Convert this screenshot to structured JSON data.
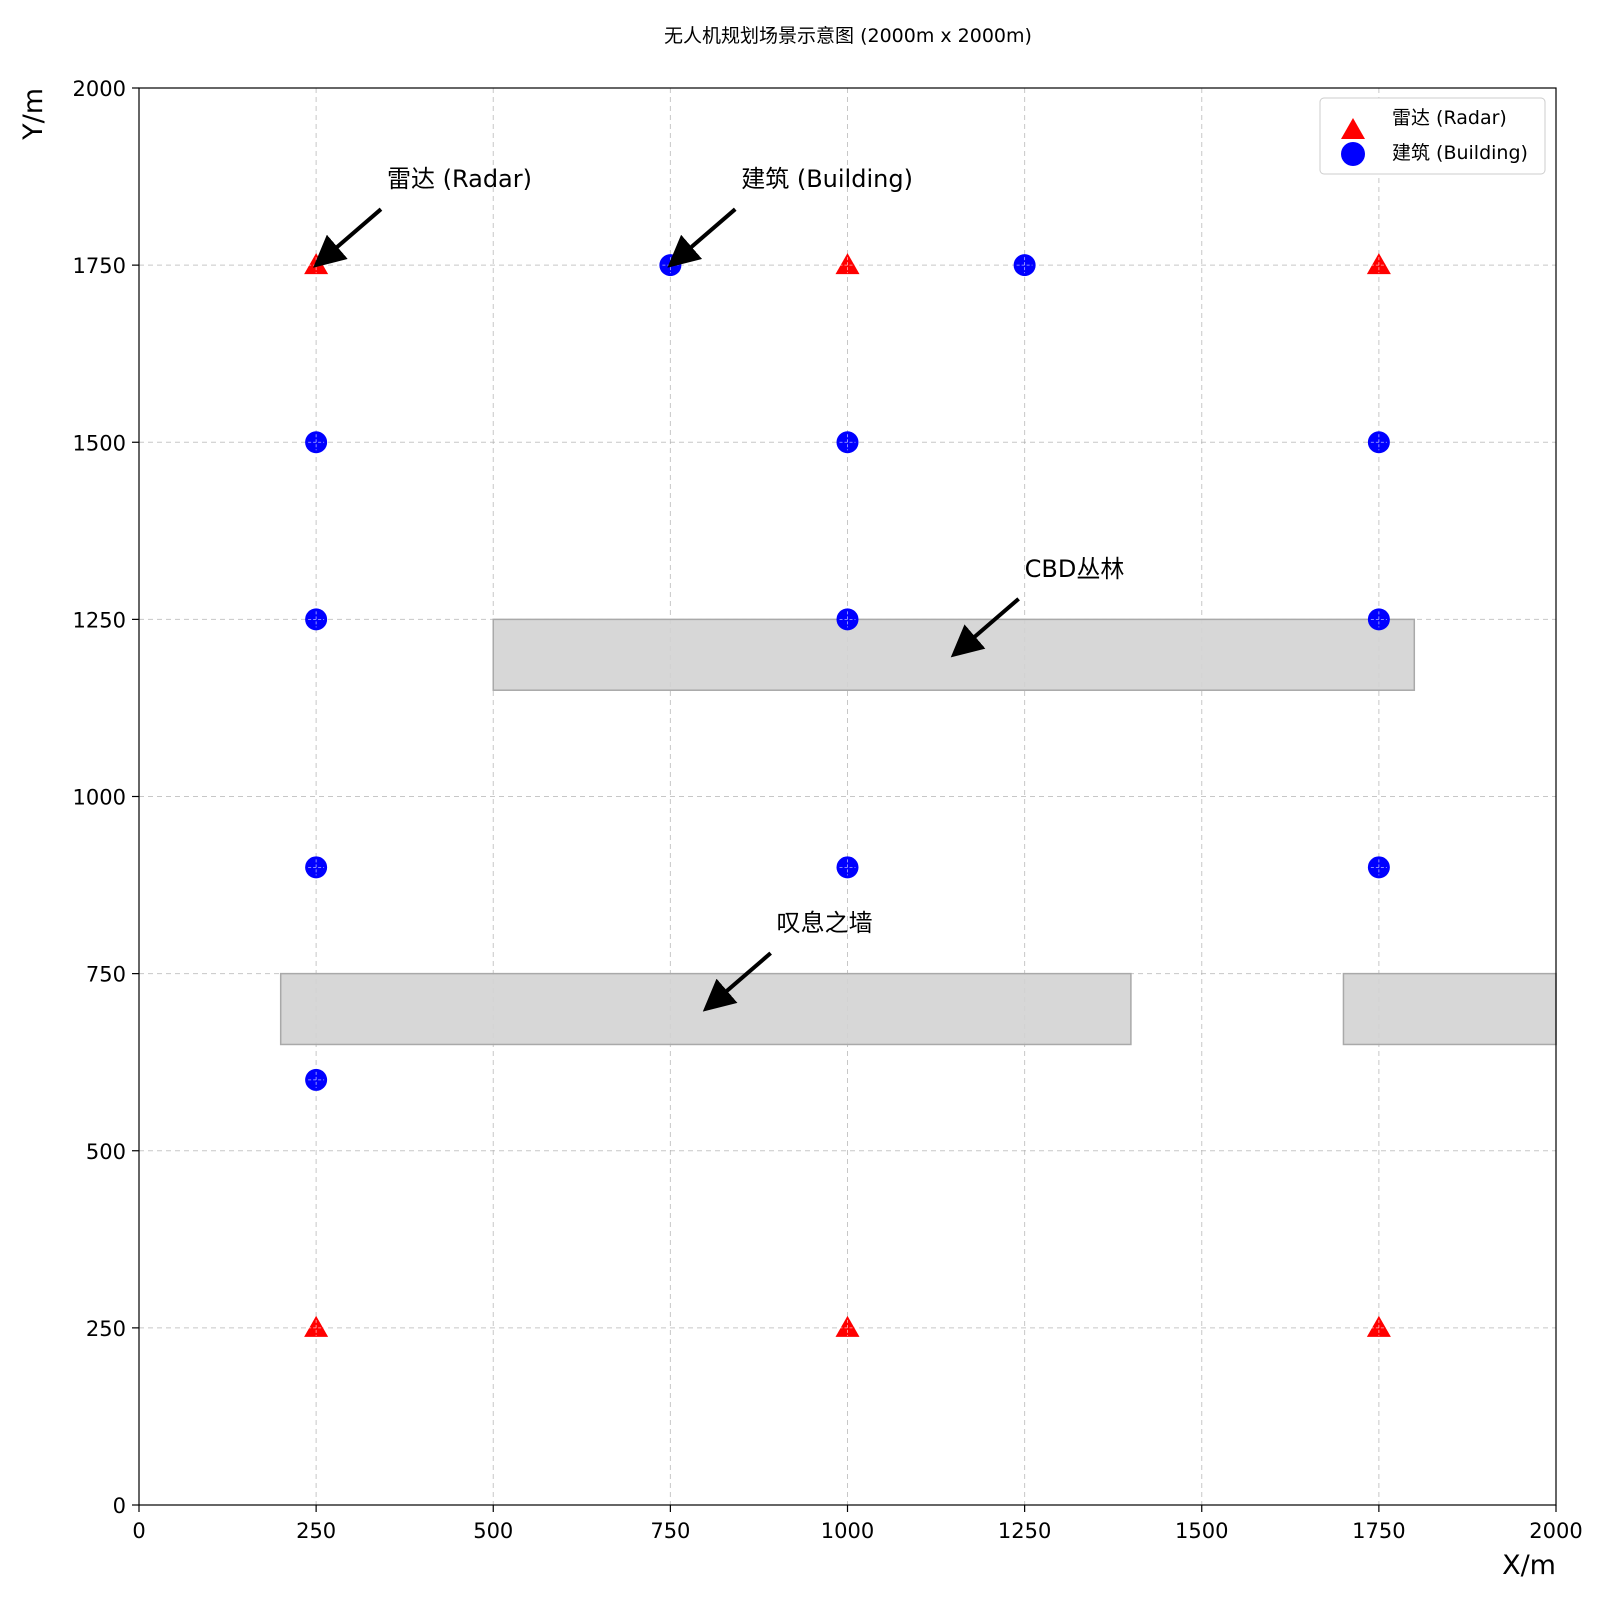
{
  "chart_data": {
    "type": "scatter",
    "title": "无人机规划场景示意图 (2000m x 2000m)",
    "xlabel": "X/m",
    "ylabel": "Y/m",
    "xlim": [
      0,
      2000
    ],
    "ylim": [
      0,
      2000
    ],
    "xticks": [
      0,
      250,
      500,
      750,
      1000,
      1250,
      1500,
      1750,
      2000
    ],
    "yticks": [
      0,
      250,
      500,
      750,
      1000,
      1250,
      1500,
      1750,
      2000
    ],
    "grid": true,
    "legend_position": "top-right",
    "series": [
      {
        "name": "雷达 (Radar)",
        "marker": "triangle",
        "color": "#ff0000",
        "points": [
          [
            250,
            1750
          ],
          [
            1000,
            1750
          ],
          [
            1750,
            1750
          ],
          [
            250,
            250
          ],
          [
            1000,
            250
          ],
          [
            1750,
            250
          ]
        ]
      },
      {
        "name": "建筑 (Building)",
        "marker": "circle",
        "color": "#0000ff",
        "points": [
          [
            750,
            1750
          ],
          [
            1250,
            1750
          ],
          [
            250,
            1500
          ],
          [
            1000,
            1500
          ],
          [
            1750,
            1500
          ],
          [
            250,
            1250
          ],
          [
            1000,
            1250
          ],
          [
            1750,
            1250
          ],
          [
            250,
            900
          ],
          [
            1000,
            900
          ],
          [
            1750,
            900
          ],
          [
            250,
            600
          ]
        ]
      }
    ],
    "regions": [
      {
        "name": "CBD丛林",
        "x": [
          500,
          1800
        ],
        "y": [
          1150,
          1250
        ],
        "color": "#d3d3d3"
      },
      {
        "name": "叹息之墙 west",
        "x": [
          200,
          1400
        ],
        "y": [
          650,
          750
        ],
        "color": "#d3d3d3"
      },
      {
        "name": "叹息之墙 east",
        "x": [
          1700,
          2000
        ],
        "y": [
          650,
          750
        ],
        "color": "#d3d3d3"
      }
    ],
    "annotations": [
      {
        "text": "雷达 (Radar)",
        "text_at": [
          350,
          1860
        ],
        "arrow_to": [
          250,
          1750
        ]
      },
      {
        "text": "建筑 (Building)",
        "text_at": [
          850,
          1860
        ],
        "arrow_to": [
          750,
          1750
        ]
      },
      {
        "text": "CBD丛林",
        "text_at": [
          1250,
          1310
        ],
        "arrow_to": [
          1150,
          1200
        ]
      },
      {
        "text": "叹息之墙",
        "text_at": [
          900,
          810
        ],
        "arrow_to": [
          800,
          700
        ]
      }
    ]
  }
}
